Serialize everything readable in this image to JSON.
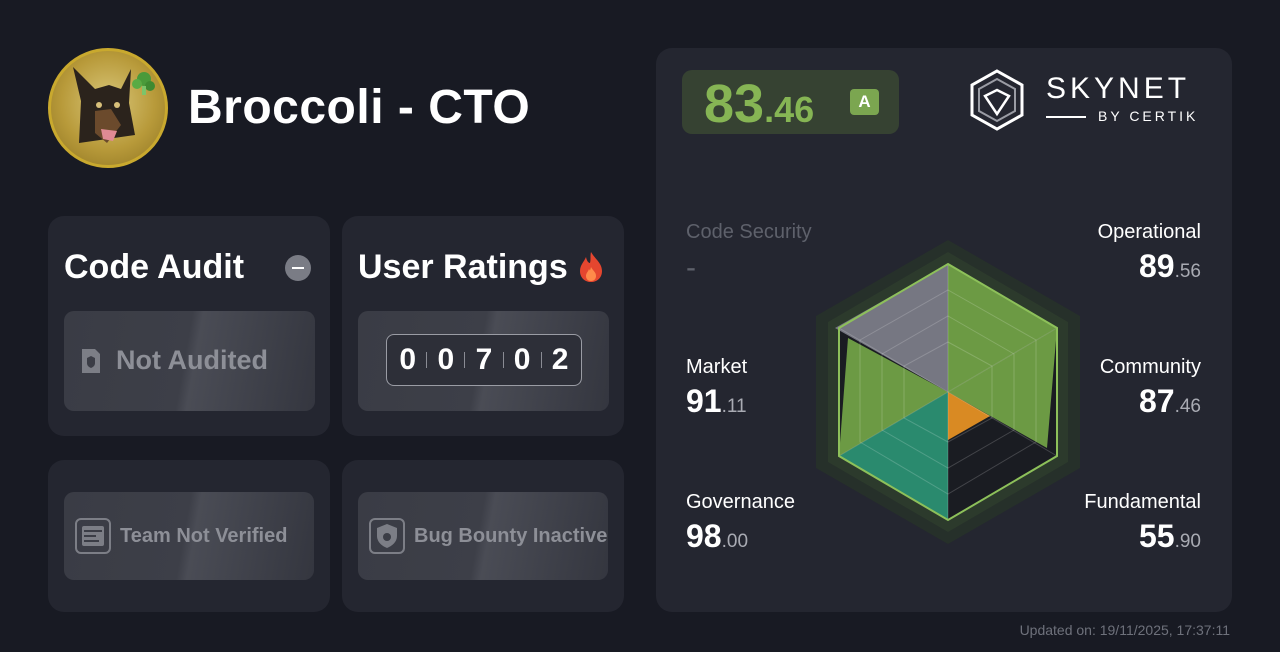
{
  "project": {
    "name": "Broccoli - CTO"
  },
  "code_audit": {
    "title": "Code Audit",
    "status": "Not Audited"
  },
  "user_ratings": {
    "title": "User Ratings",
    "digits": [
      "0",
      "0",
      "7",
      "0",
      "2"
    ]
  },
  "team": {
    "label": "Team Not Verified"
  },
  "bug_bounty": {
    "label": "Bug Bounty Inactive"
  },
  "score": {
    "integer": "83",
    "decimal": ".46",
    "grade": "A"
  },
  "brand": {
    "name": "SKYNET",
    "sub": "BY CERTIK"
  },
  "metrics": {
    "code_security": {
      "label": "Code Security",
      "value": "-"
    },
    "operational": {
      "label": "Operational",
      "int": "89",
      "dec": ".56"
    },
    "market": {
      "label": "Market",
      "int": "91",
      "dec": ".11"
    },
    "community": {
      "label": "Community",
      "int": "87",
      "dec": ".46"
    },
    "governance": {
      "label": "Governance",
      "int": "98",
      "dec": ".00"
    },
    "fundamental": {
      "label": "Fundamental",
      "int": "55",
      "dec": ".90"
    }
  },
  "updated": "Updated on: 19/11/2025, 17:37:11",
  "colors": {
    "accent_green": "#86b554",
    "grade_green": "#7ba650",
    "teal": "#2a8a6e",
    "orange": "#d98a23"
  }
}
